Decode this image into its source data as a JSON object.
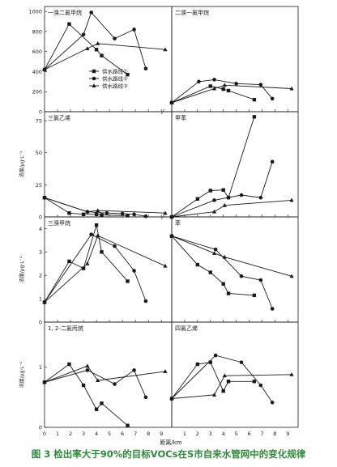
{
  "caption": {
    "label": "图 3",
    "text": "检出率大于90%的目标VOCs在S市自来水管网中的变化规律"
  },
  "colors": {
    "line": "#1a1a1a",
    "caption": "#2e8b3a"
  },
  "legend_labels": [
    "供水路线①",
    "供水路线②",
    "供水路线③"
  ],
  "marker_types": [
    "square",
    "circle",
    "triangle"
  ],
  "shared_xlabel": "距离/km",
  "shared_xticks": [
    0,
    1,
    2,
    3,
    4,
    5,
    6,
    7,
    8,
    9
  ],
  "chart_data": [
    {
      "type": "line",
      "title": "一溴二氯甲烷",
      "xlim": [
        0,
        9.8
      ],
      "ylim": [
        0,
        1050
      ],
      "yticks": [
        "0",
        "200",
        "400",
        "600",
        "800",
        "1000"
      ],
      "ylabel": "",
      "legend": "inside",
      "series": [
        {
          "name": "供水路线①",
          "x": [
            0,
            1.9,
            4.0,
            4.4,
            6.4
          ],
          "y": [
            420,
            875,
            620,
            560,
            370
          ]
        },
        {
          "name": "供水路线②",
          "x": [
            0,
            3.0,
            3.6,
            5.4,
            6.9,
            7.8
          ],
          "y": [
            420,
            770,
            990,
            730,
            820,
            430
          ]
        },
        {
          "name": "供水路线③",
          "x": [
            0,
            3.3,
            4.1,
            9.3
          ],
          "y": [
            420,
            630,
            680,
            620
          ]
        }
      ]
    },
    {
      "type": "line",
      "title": "二溴一氯甲烷",
      "xlim": [
        0,
        9.8
      ],
      "ylim": [
        0,
        1050
      ],
      "yticks": [],
      "ylabel": "",
      "legend": "none",
      "series": [
        {
          "name": "",
          "x": [
            0,
            3.0,
            4.0,
            4.4,
            6.4
          ],
          "y": [
            90,
            255,
            225,
            210,
            120
          ]
        },
        {
          "name": "",
          "x": [
            0,
            2.1,
            3.3,
            5.0,
            6.9,
            7.8
          ],
          "y": [
            90,
            300,
            320,
            280,
            270,
            130
          ]
        },
        {
          "name": "",
          "x": [
            0,
            3.3,
            4.1,
            9.3
          ],
          "y": [
            90,
            230,
            265,
            230
          ]
        }
      ]
    },
    {
      "type": "line",
      "title": "三氯乙烯",
      "xlim": [
        0,
        9.8
      ],
      "ylim": [
        0,
        82
      ],
      "yticks": [
        "0",
        "25",
        "50",
        "75"
      ],
      "ylabel": "浓度/μg·L⁻¹",
      "legend": "none",
      "series": [
        {
          "name": "",
          "x": [
            0,
            1.9,
            3.0,
            4.0,
            4.4,
            6.4
          ],
          "y": [
            15,
            3,
            2,
            2,
            1.5,
            1
          ]
        },
        {
          "name": "",
          "x": [
            0,
            3.3,
            4.8,
            6.0,
            6.9,
            7.8
          ],
          "y": [
            15,
            4,
            3,
            2.5,
            2,
            0.5
          ]
        },
        {
          "name": "",
          "x": [
            0,
            3.3,
            4.1,
            9.3
          ],
          "y": [
            15,
            4,
            5,
            3
          ]
        }
      ]
    },
    {
      "type": "line",
      "title": "甲苯",
      "xlim": [
        0,
        9.8
      ],
      "ylim": [
        0,
        82
      ],
      "yticks": [],
      "ylabel": "",
      "legend": "none",
      "series": [
        {
          "name": "",
          "x": [
            0,
            2.0,
            3.0,
            4.0,
            4.4,
            6.4
          ],
          "y": [
            0,
            14,
            20.5,
            21,
            15,
            78
          ]
        },
        {
          "name": "",
          "x": [
            0,
            3.3,
            5.4,
            6.9,
            7.8
          ],
          "y": [
            0,
            13,
            17,
            15,
            43
          ]
        },
        {
          "name": "",
          "x": [
            0,
            3.3,
            4.1,
            9.3
          ],
          "y": [
            0,
            4,
            9,
            13
          ]
        }
      ]
    },
    {
      "type": "line",
      "title": "三溴甲烷",
      "xlim": [
        0,
        9.8
      ],
      "ylim": [
        0,
        4.5
      ],
      "yticks": [
        "0",
        "1",
        "2",
        "3",
        "4"
      ],
      "ylabel": "浓度/μg·L⁻¹",
      "legend": "none",
      "series": [
        {
          "name": "",
          "x": [
            0,
            1.9,
            3.0,
            4.0,
            4.4,
            6.4
          ],
          "y": [
            0.85,
            2.6,
            2.3,
            4.15,
            3.0,
            1.75
          ]
        },
        {
          "name": "",
          "x": [
            0,
            3.6,
            5.4,
            6.9,
            7.8
          ],
          "y": [
            0.85,
            3.75,
            3.25,
            2.2,
            0.9
          ]
        },
        {
          "name": "",
          "x": [
            0,
            3.3,
            4.1,
            9.3
          ],
          "y": [
            0.85,
            2.5,
            3.7,
            2.4
          ]
        }
      ]
    },
    {
      "type": "line",
      "title": "苯",
      "xlim": [
        0,
        9.8
      ],
      "ylim": [
        0,
        2.75
      ],
      "yticks": [],
      "ylabel": "",
      "legend": "none",
      "series": [
        {
          "name": "",
          "x": [
            0,
            2.0,
            3.0,
            4.0,
            4.4,
            6.4
          ],
          "y": [
            2.25,
            1.5,
            1.3,
            1.0,
            0.75,
            0.7
          ]
        },
        {
          "name": "",
          "x": [
            0,
            3.4,
            5.4,
            6.9,
            7.8
          ],
          "y": [
            2.25,
            1.9,
            1.2,
            1.1,
            0.35
          ]
        },
        {
          "name": "",
          "x": [
            0,
            3.3,
            4.1,
            9.3
          ],
          "y": [
            2.25,
            1.8,
            1.7,
            1.2
          ]
        }
      ]
    },
    {
      "type": "line",
      "title": "1, 2-二氯丙烷",
      "xlim": [
        0,
        9.8
      ],
      "ylim": [
        0,
        1.75
      ],
      "yticks": [
        "0",
        "1"
      ],
      "ylabel": "浓度/μg·L⁻¹",
      "legend": "none",
      "series": [
        {
          "name": "",
          "x": [
            0,
            1.9,
            3.0,
            4.0,
            4.4,
            6.4
          ],
          "y": [
            0.75,
            1.05,
            0.7,
            0.3,
            0.4,
            0.03
          ]
        },
        {
          "name": "",
          "x": [
            0,
            3.3,
            5.4,
            6.9,
            7.8
          ],
          "y": [
            0.75,
            0.95,
            0.72,
            0.95,
            0.5
          ]
        },
        {
          "name": "",
          "x": [
            0,
            3.3,
            4.1,
            9.3
          ],
          "y": [
            0.75,
            1.02,
            0.78,
            0.93
          ]
        }
      ]
    },
    {
      "type": "line",
      "title": "四氯乙烯",
      "xlim": [
        0,
        9.8
      ],
      "ylim": [
        0,
        2.75
      ],
      "yticks": [],
      "ylabel": "",
      "legend": "none",
      "series": [
        {
          "name": "",
          "x": [
            0,
            2.0,
            3.0,
            4.0,
            4.4,
            6.4
          ],
          "y": [
            0.75,
            1.65,
            1.7,
            0.95,
            1.2,
            1.2
          ]
        },
        {
          "name": "",
          "x": [
            0,
            3.4,
            5.4,
            6.9,
            7.8
          ],
          "y": [
            0.75,
            1.88,
            1.7,
            1.1,
            0.65
          ]
        },
        {
          "name": "",
          "x": [
            0,
            3.3,
            4.1,
            9.3
          ],
          "y": [
            0.75,
            0.85,
            1.35,
            1.38
          ]
        }
      ]
    }
  ]
}
